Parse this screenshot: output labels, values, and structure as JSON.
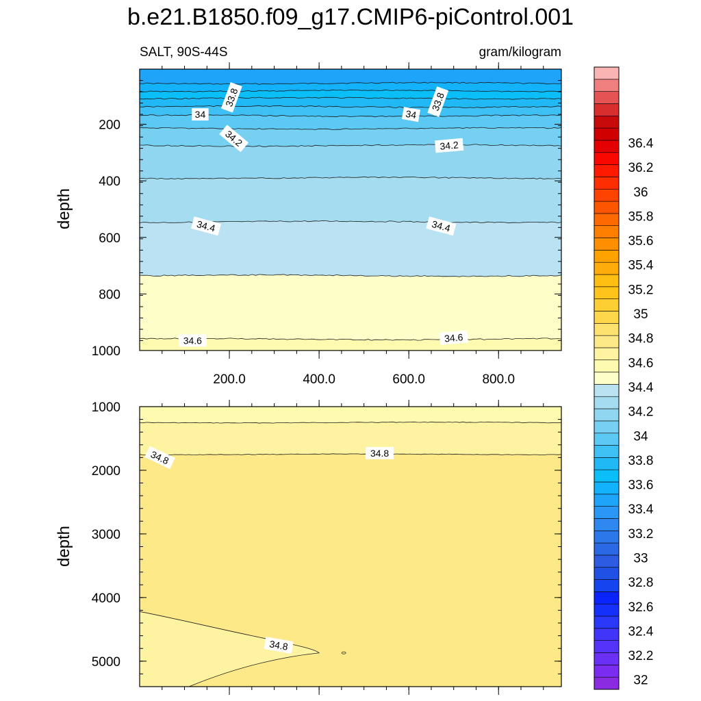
{
  "title": "b.e21.B1850.f09_g17.CMIP6-piControl.001",
  "chart_data": [
    {
      "type": "contour",
      "panel": "upper",
      "left_string": "SALT, 90S-44S",
      "right_string": "gram/kilogram",
      "xlabel": "",
      "ylabel": "depth",
      "xlim": [
        0,
        940
      ],
      "ylim": [
        1000,
        5
      ],
      "y_reversed": true,
      "x_ticks": [
        200,
        400,
        600,
        800
      ],
      "x_tick_labels": [
        "200.0",
        "400.0",
        "600.0",
        "800.0"
      ],
      "y_ticks": [
        200,
        400,
        600,
        800,
        1000
      ],
      "y_tick_labels": [
        "200",
        "400",
        "600",
        "800",
        "1000"
      ],
      "contour_depths": [
        {
          "level": 33.6,
          "depth": 55
        },
        {
          "level": 33.7,
          "depth": 82
        },
        {
          "level": 33.8,
          "depth": 108
        },
        {
          "level": 33.9,
          "depth": 138
        },
        {
          "level": 34.0,
          "depth": 170
        },
        {
          "level": 34.1,
          "depth": 215
        },
        {
          "level": 34.2,
          "depth": 275
        },
        {
          "level": 34.3,
          "depth": 390
        },
        {
          "level": 34.4,
          "depth": 545
        },
        {
          "level": 34.5,
          "depth": 735
        },
        {
          "level": 34.6,
          "depth": 960
        }
      ],
      "contour_labels": [
        {
          "text": "33.8",
          "x": 205,
          "depth": 105,
          "angle": -70
        },
        {
          "text": "33.8",
          "x": 665,
          "depth": 120,
          "angle": -70
        },
        {
          "text": "34",
          "x": 135,
          "depth": 165,
          "angle": 0
        },
        {
          "text": "34",
          "x": 605,
          "depth": 165,
          "angle": 10
        },
        {
          "text": "34.2",
          "x": 210,
          "depth": 250,
          "angle": 40
        },
        {
          "text": "34.2",
          "x": 690,
          "depth": 275,
          "angle": -5
        },
        {
          "text": "34.4",
          "x": 148,
          "depth": 560,
          "angle": 15
        },
        {
          "text": "34.4",
          "x": 672,
          "depth": 560,
          "angle": 15
        },
        {
          "text": "34.6",
          "x": 118,
          "depth": 965,
          "angle": 0
        },
        {
          "text": "34.6",
          "x": 700,
          "depth": 955,
          "angle": -5
        }
      ]
    },
    {
      "type": "contour",
      "panel": "lower",
      "xlabel": "",
      "ylabel": "depth",
      "xlim": [
        0,
        940
      ],
      "ylim": [
        5400,
        1000
      ],
      "y_reversed": true,
      "y_ticks": [
        1000,
        2000,
        3000,
        4000,
        5000
      ],
      "y_tick_labels": [
        "1000",
        "2000",
        "3000",
        "4000",
        "5000"
      ],
      "contour_depths": [
        {
          "level": 34.7,
          "depth": 1250
        },
        {
          "level": 34.8,
          "depth": 1750
        }
      ],
      "bottom_tongue_level": 34.8,
      "contour_labels": [
        {
          "text": "34.8",
          "x": 45,
          "depth": 1800,
          "angle": 25
        },
        {
          "text": "34.8",
          "x": 535,
          "depth": 1730,
          "angle": 0
        },
        {
          "text": "34.8",
          "x": 310,
          "depth": 4750,
          "angle": 10
        }
      ]
    }
  ],
  "colorbar": {
    "labels": [
      "36.4",
      "36.2",
      "36",
      "35.8",
      "35.6",
      "35.4",
      "35.2",
      "35",
      "34.8",
      "34.6",
      "34.4",
      "34.2",
      "34",
      "33.8",
      "33.6",
      "33.4",
      "33.2",
      "33",
      "32.8",
      "32.6",
      "32.4",
      "32.2",
      "32"
    ],
    "levels_min": 32.0,
    "levels_max": 36.5,
    "interval": 0.1,
    "colors": [
      "#8a2be2",
      "#7a2df0",
      "#6a30f5",
      "#5533f7",
      "#4035f8",
      "#2a38fa",
      "#1530fb",
      "#0a24fc",
      "#1545ee",
      "#2050e4",
      "#2d5ce2",
      "#2b68e3",
      "#2c78eb",
      "#2e88f0",
      "#2a96f5",
      "#1ea4f8",
      "#12b2fc",
      "#0abef8",
      "#20b8f5",
      "#3ec0f4",
      "#5cc8f4",
      "#75d0f2",
      "#90d6f0",
      "#a6dcf0",
      "#bae2f2",
      "#feffc8",
      "#fefbb0",
      "#fef3a0",
      "#fee988",
      "#fee270",
      "#fed84a",
      "#fecf32",
      "#fec41a",
      "#febe12",
      "#feac0a",
      "#fea200",
      "#fe9000",
      "#fe7e00",
      "#fe6a00",
      "#fe5600",
      "#fe4200",
      "#fe2e00",
      "#fe1a00",
      "#f80800",
      "#e40000",
      "#d00000",
      "#c80a0a",
      "#d82e2e",
      "#e45454",
      "#f07f7f",
      "#fbb4b4"
    ]
  }
}
